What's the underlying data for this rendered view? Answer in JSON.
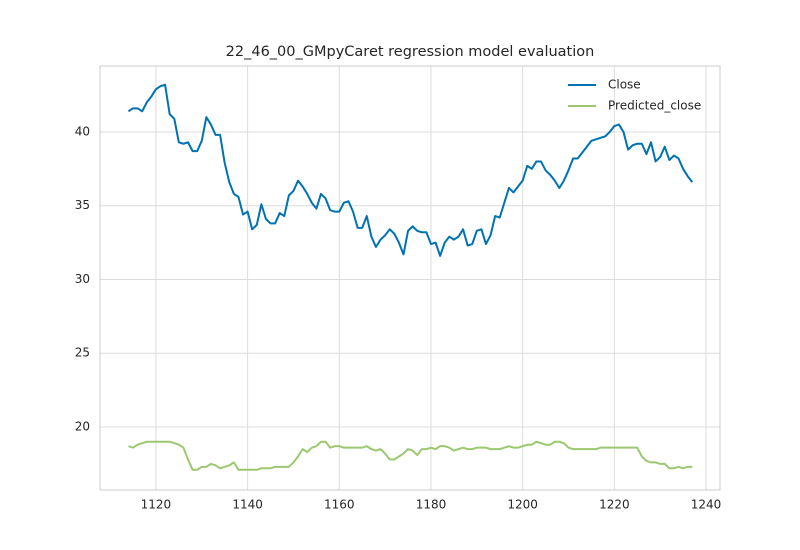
{
  "chart_data": {
    "type": "line",
    "title": "22_46_00_GMpyCaret regression model evaluation",
    "x": [
      1114,
      1115,
      1116,
      1117,
      1118,
      1119,
      1120,
      1121,
      1122,
      1123,
      1124,
      1125,
      1126,
      1127,
      1128,
      1129,
      1130,
      1131,
      1132,
      1133,
      1134,
      1135,
      1136,
      1137,
      1138,
      1139,
      1140,
      1141,
      1142,
      1143,
      1144,
      1145,
      1146,
      1147,
      1148,
      1149,
      1150,
      1151,
      1152,
      1153,
      1154,
      1155,
      1156,
      1157,
      1158,
      1159,
      1160,
      1161,
      1162,
      1163,
      1164,
      1165,
      1166,
      1167,
      1168,
      1169,
      1170,
      1171,
      1172,
      1173,
      1174,
      1175,
      1176,
      1177,
      1178,
      1179,
      1180,
      1181,
      1182,
      1183,
      1184,
      1185,
      1186,
      1187,
      1188,
      1189,
      1190,
      1191,
      1192,
      1193,
      1194,
      1195,
      1196,
      1197,
      1198,
      1199,
      1200,
      1201,
      1202,
      1203,
      1204,
      1205,
      1206,
      1207,
      1208,
      1209,
      1210,
      1211,
      1212,
      1213,
      1214,
      1215,
      1216,
      1217,
      1218,
      1219,
      1220,
      1221,
      1222,
      1223,
      1224,
      1225,
      1226,
      1227,
      1228,
      1229,
      1230,
      1231,
      1232,
      1233,
      1234,
      1235,
      1236,
      1237
    ],
    "series": [
      {
        "name": "Close",
        "color": "#0072b2",
        "values": [
          41.4,
          41.6,
          41.6,
          41.4,
          42.0,
          42.4,
          42.9,
          43.1,
          43.2,
          41.2,
          40.9,
          39.3,
          39.2,
          39.3,
          38.7,
          38.7,
          39.4,
          41.0,
          40.5,
          39.8,
          39.8,
          37.9,
          36.6,
          35.8,
          35.6,
          34.4,
          34.6,
          33.4,
          33.7,
          35.1,
          34.1,
          33.8,
          33.8,
          34.5,
          34.3,
          35.7,
          36.0,
          36.7,
          36.3,
          35.8,
          35.2,
          34.8,
          35.8,
          35.5,
          34.7,
          34.6,
          34.6,
          35.2,
          35.3,
          34.6,
          33.5,
          33.5,
          34.3,
          32.9,
          32.2,
          32.7,
          33.0,
          33.4,
          33.1,
          32.5,
          31.7,
          33.3,
          33.6,
          33.3,
          33.2,
          33.2,
          32.4,
          32.5,
          31.6,
          32.5,
          32.9,
          32.7,
          32.9,
          33.4,
          32.3,
          32.4,
          33.3,
          33.4,
          32.4,
          33.0,
          34.3,
          34.2,
          35.2,
          36.2,
          35.9,
          36.3,
          36.7,
          37.7,
          37.5,
          38.0,
          38.0,
          37.4,
          37.1,
          36.7,
          36.2,
          36.7,
          37.4,
          38.2,
          38.2,
          38.6,
          39.0,
          39.4,
          39.5,
          39.6,
          39.7,
          40.0,
          40.4,
          40.5,
          40.0,
          38.8,
          39.1,
          39.2,
          39.2,
          38.5,
          39.3,
          38.0,
          38.3,
          39.0,
          38.1,
          38.4,
          38.2,
          37.5,
          37.0,
          36.6
        ]
      },
      {
        "name": "Predicted_close",
        "color": "#9bc870",
        "values": [
          18.7,
          18.6,
          18.8,
          18.9,
          19.0,
          19.0,
          19.0,
          19.0,
          19.0,
          19.0,
          18.9,
          18.8,
          18.6,
          17.8,
          17.1,
          17.1,
          17.3,
          17.3,
          17.5,
          17.4,
          17.2,
          17.3,
          17.4,
          17.6,
          17.1,
          17.1,
          17.1,
          17.1,
          17.1,
          17.2,
          17.2,
          17.2,
          17.3,
          17.3,
          17.3,
          17.3,
          17.6,
          18.0,
          18.5,
          18.3,
          18.6,
          18.7,
          19.0,
          19.0,
          18.6,
          18.7,
          18.7,
          18.6,
          18.6,
          18.6,
          18.6,
          18.6,
          18.7,
          18.5,
          18.4,
          18.5,
          18.2,
          17.8,
          17.8,
          18.0,
          18.2,
          18.5,
          18.4,
          18.1,
          18.5,
          18.5,
          18.6,
          18.5,
          18.7,
          18.7,
          18.6,
          18.4,
          18.5,
          18.6,
          18.5,
          18.5,
          18.6,
          18.6,
          18.6,
          18.5,
          18.5,
          18.5,
          18.6,
          18.7,
          18.6,
          18.6,
          18.7,
          18.8,
          18.8,
          19.0,
          18.9,
          18.8,
          18.8,
          19.0,
          19.0,
          18.9,
          18.6,
          18.5,
          18.5,
          18.5,
          18.5,
          18.5,
          18.5,
          18.6,
          18.6,
          18.6,
          18.6,
          18.6,
          18.6,
          18.6,
          18.6,
          18.6,
          18.0,
          17.7,
          17.6,
          17.6,
          17.5,
          17.5,
          17.2,
          17.2,
          17.3,
          17.2,
          17.3,
          17.3
        ]
      }
    ],
    "xlim": [
      1107.8,
      1243.05
    ],
    "ylim": [
      15.73,
      44.47
    ],
    "xticks": [
      1120,
      1140,
      1160,
      1180,
      1200,
      1220,
      1240
    ],
    "yticks": [
      20,
      25,
      30,
      35,
      40
    ],
    "grid": true,
    "legend": "upper right"
  }
}
